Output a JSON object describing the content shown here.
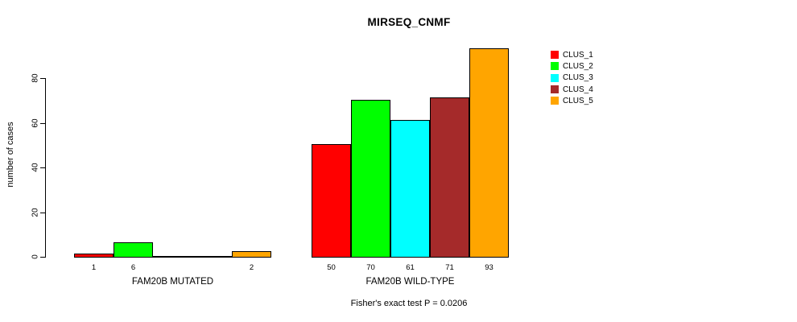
{
  "chart_data": {
    "type": "bar",
    "title": "MIRSEQ_CNMF",
    "ylabel": "number of cases",
    "ylim": [
      0,
      93
    ],
    "yticks": [
      0,
      20,
      40,
      60,
      80
    ],
    "grid": false,
    "legend_position": "right-outside",
    "series": [
      {
        "name": "CLUS_1",
        "color": "#FF0000"
      },
      {
        "name": "CLUS_2",
        "color": "#00FF00"
      },
      {
        "name": "CLUS_3",
        "color": "#00FFFF"
      },
      {
        "name": "CLUS_4",
        "color": "#A52A2A"
      },
      {
        "name": "CLUS_5",
        "color": "#FFA500"
      }
    ],
    "groups": [
      {
        "label": "FAM20B MUTATED",
        "values": [
          1,
          6,
          0,
          0,
          2
        ]
      },
      {
        "label": "FAM20B WILD-TYPE",
        "values": [
          50,
          70,
          61,
          71,
          93
        ]
      }
    ],
    "bar_labels": [
      [
        "1",
        "6",
        "",
        "",
        "2"
      ],
      [
        "50",
        "70",
        "61",
        "71",
        "93"
      ]
    ],
    "annotation": "Fisher's exact test P = 0.0206",
    "axis_color": "#000000",
    "bar_border_color": "#000000"
  }
}
